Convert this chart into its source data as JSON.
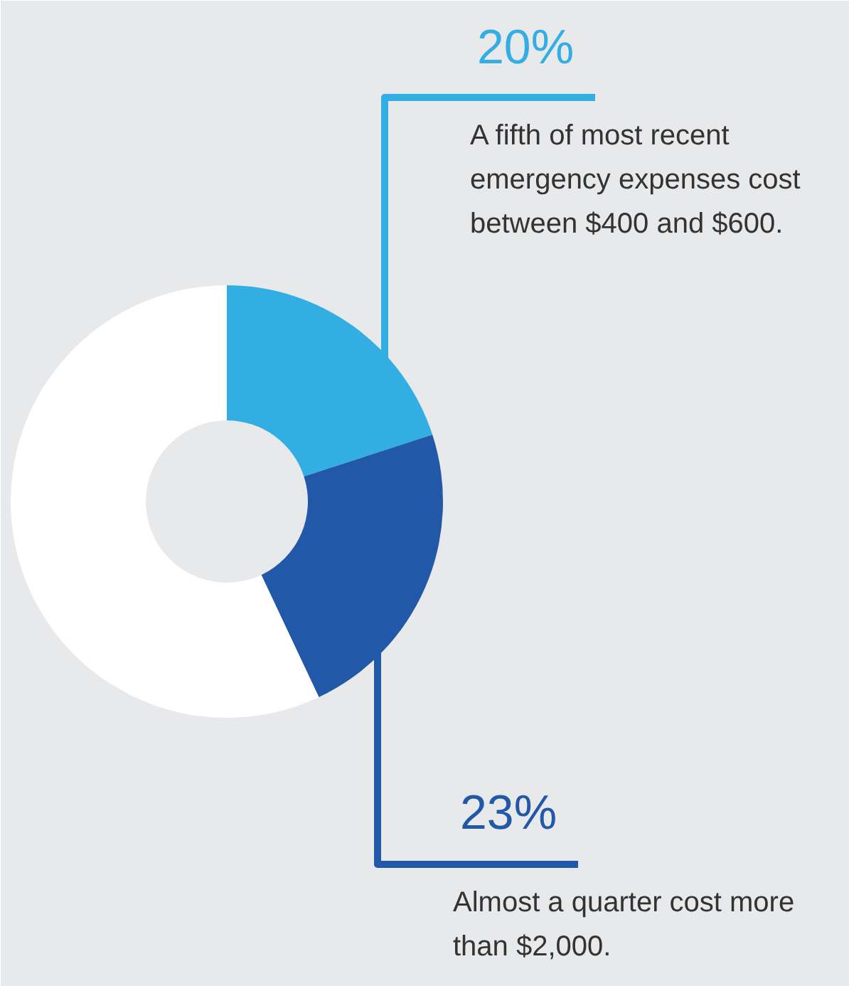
{
  "chart_data": {
    "type": "donut",
    "categories": [
      null,
      null,
      null
    ],
    "values": [
      20,
      23,
      57
    ],
    "colors": [
      "#33aee3",
      "#2158a8",
      "#ffffff"
    ],
    "value_labels": [
      "20%",
      "23%",
      null
    ],
    "annotations": [
      "A fifth of most recent emergency expenses cost between $400 and $600.",
      "Almost a quarter cost more than $2,000."
    ]
  }
}
